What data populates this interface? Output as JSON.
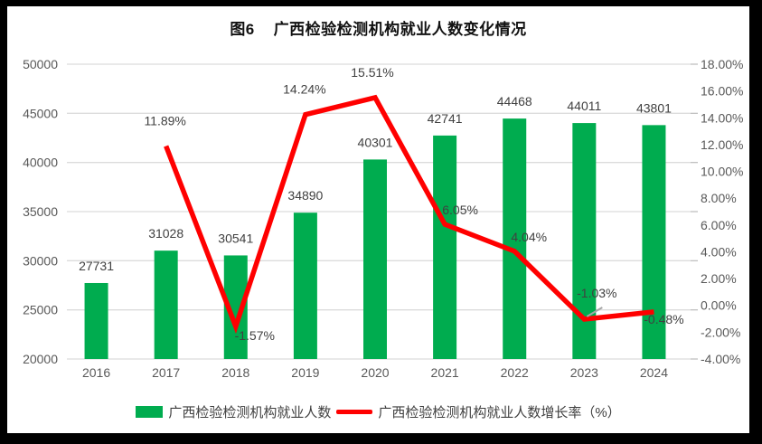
{
  "title": "图6    广西检验检测机构就业人数变化情况",
  "colors": {
    "bar": "#00AC4F",
    "line": "#FF0000",
    "grid": "#DCDCDC",
    "tick": "#C0C0C0",
    "axis_text": "#595959",
    "data_label_text": "#404040",
    "title_text": "#111111",
    "leader": "#A6A6A6",
    "border": "#000000",
    "background": "#FFFFFF"
  },
  "chart_data": {
    "type": "combo-bar-line",
    "title": "图6 广西检验检测机构就业人数变化情况",
    "categories": [
      "2016",
      "2017",
      "2018",
      "2019",
      "2020",
      "2021",
      "2022",
      "2023",
      "2024"
    ],
    "series": [
      {
        "name": "广西检验检测机构就业人数",
        "type": "bar",
        "axis": "left",
        "values": [
          27731,
          31028,
          30541,
          34890,
          40301,
          42741,
          44468,
          44011,
          43801
        ],
        "data_labels": [
          "27731",
          "31028",
          "30541",
          "34890",
          "40301",
          "42741",
          "44468",
          "44011",
          "43801"
        ]
      },
      {
        "name": "广西检验检测机构就业人数增长率（%）",
        "type": "line",
        "axis": "right",
        "values": [
          null,
          11.89,
          -1.57,
          14.24,
          15.51,
          6.05,
          4.04,
          -1.03,
          -0.48
        ],
        "data_labels": [
          "",
          "11.89%",
          "-1.57%",
          "14.24%",
          "15.51%",
          "6.05%",
          "4.04%",
          "-1.03%",
          "-0.48%"
        ]
      }
    ],
    "left_axis": {
      "min": 20000,
      "max": 50000,
      "step": 5000,
      "tick_labels": [
        "50000",
        "45000",
        "40000",
        "35000",
        "30000",
        "25000",
        "20000"
      ]
    },
    "right_axis": {
      "min": -4,
      "max": 18,
      "step": 2,
      "tick_labels": [
        "18.00%",
        "16.00%",
        "14.00%",
        "12.00%",
        "10.00%",
        "8.00%",
        "6.00%",
        "4.00%",
        "2.00%",
        "0.00%",
        "-2.00%",
        "-4.00%"
      ]
    },
    "grid": true,
    "legend_position": "bottom",
    "line_label_offsets": [
      null,
      [
        -1,
        -28
      ],
      [
        21,
        10
      ],
      [
        -1,
        -28
      ],
      [
        -3,
        -28
      ],
      [
        17,
        -16
      ],
      [
        16,
        -16
      ],
      [
        14,
        -29
      ],
      [
        11,
        8
      ]
    ],
    "callout_index": 7
  },
  "legend": {
    "items": [
      {
        "label": "广西检验检测机构就业人数",
        "swatch": "bar"
      },
      {
        "label": "广西检验检测机构就业人数增长率（%）",
        "swatch": "line"
      }
    ]
  }
}
